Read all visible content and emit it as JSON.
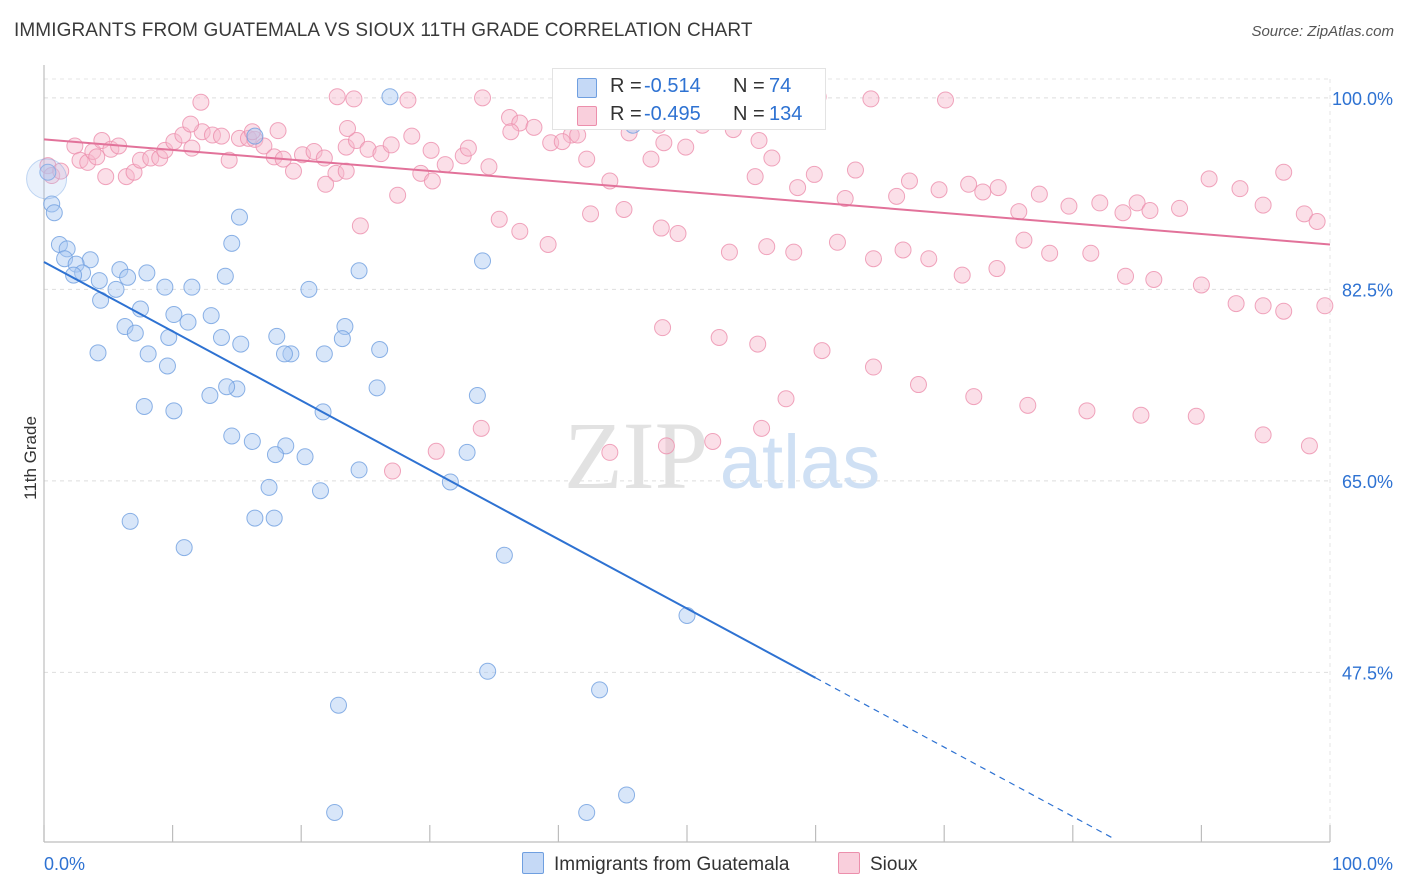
{
  "title": "IMMIGRANTS FROM GUATEMALA VS SIOUX 11TH GRADE CORRELATION CHART",
  "source": "Source: ZipAtlas.com",
  "watermark": {
    "zip": "ZIP",
    "atlas": "atlas"
  },
  "colors": {
    "blue_fill": "#a9c8f2",
    "blue_stroke": "#6f9fe0",
    "blue_line": "#2e72d2",
    "pink_fill": "#f6b8cb",
    "pink_stroke": "#ec8fac",
    "pink_line": "#e2729a",
    "value_text": "#2e72d2"
  },
  "legend": {
    "rows": [
      {
        "label": "R =",
        "r": "-0.514",
        "n_label": "N =",
        "n": "74"
      },
      {
        "label": "R =",
        "r": "-0.495",
        "n_label": "N =",
        "n": "134"
      }
    ]
  },
  "chart_data": {
    "type": "scatter",
    "title": "IMMIGRANTS FROM GUATEMALA VS SIOUX 11TH GRADE CORRELATION CHART",
    "xlabel": "",
    "ylabel": "11th Grade",
    "xlim": [
      0,
      100
    ],
    "ylim": [
      32,
      103
    ],
    "x_tick_labels": [
      "0.0%",
      "100.0%"
    ],
    "y_ticks": [
      47.5,
      65.0,
      82.5,
      100.0
    ],
    "y_tick_labels": [
      "47.5%",
      "65.0%",
      "82.5%",
      "100.0%"
    ],
    "grid": true,
    "legend_position": "top-center",
    "series": [
      {
        "name": "Immigrants from Guatemala",
        "color": "#a9c8f2",
        "R": -0.514,
        "N": 74,
        "trend": {
          "x": [
            0,
            60
          ],
          "y": [
            85.0,
            47.0
          ],
          "dashed_to": [
            83.2,
            32.3
          ]
        },
        "points": [
          [
            0.3,
            93.2
          ],
          [
            0.6,
            90.3
          ],
          [
            0.8,
            89.5
          ],
          [
            1.2,
            86.6
          ],
          [
            1.8,
            86.2
          ],
          [
            1.6,
            85.3
          ],
          [
            3.6,
            85.2
          ],
          [
            2.5,
            84.8
          ],
          [
            3.0,
            84.0
          ],
          [
            2.3,
            83.8
          ],
          [
            5.9,
            84.3
          ],
          [
            4.3,
            83.3
          ],
          [
            6.5,
            83.6
          ],
          [
            8.0,
            84.0
          ],
          [
            5.6,
            82.5
          ],
          [
            9.4,
            82.7
          ],
          [
            11.5,
            82.7
          ],
          [
            4.4,
            81.5
          ],
          [
            7.5,
            80.7
          ],
          [
            10.1,
            80.2
          ],
          [
            13.0,
            80.1
          ],
          [
            11.2,
            79.5
          ],
          [
            6.3,
            79.1
          ],
          [
            7.1,
            78.5
          ],
          [
            9.7,
            78.1
          ],
          [
            13.8,
            78.1
          ],
          [
            14.1,
            83.7
          ],
          [
            8.1,
            76.6
          ],
          [
            4.2,
            76.7
          ],
          [
            9.6,
            75.5
          ],
          [
            14.6,
            86.7
          ],
          [
            15.2,
            89.1
          ],
          [
            16.4,
            96.5
          ],
          [
            15.0,
            73.4
          ],
          [
            14.2,
            73.6
          ],
          [
            12.9,
            72.8
          ],
          [
            7.8,
            71.8
          ],
          [
            10.1,
            71.4
          ],
          [
            14.6,
            69.1
          ],
          [
            16.2,
            68.6
          ],
          [
            18.1,
            78.2
          ],
          [
            15.3,
            77.5
          ],
          [
            19.2,
            76.6
          ],
          [
            20.6,
            82.5
          ],
          [
            23.4,
            79.1
          ],
          [
            24.5,
            84.2
          ],
          [
            23.2,
            78.0
          ],
          [
            26.1,
            77.0
          ],
          [
            21.8,
            76.6
          ],
          [
            18.7,
            76.6
          ],
          [
            25.9,
            73.5
          ],
          [
            33.7,
            72.8
          ],
          [
            34.1,
            85.1
          ],
          [
            21.7,
            71.3
          ],
          [
            32.9,
            67.6
          ],
          [
            18.8,
            68.2
          ],
          [
            18.0,
            67.4
          ],
          [
            20.3,
            67.2
          ],
          [
            24.5,
            66.0
          ],
          [
            31.6,
            64.9
          ],
          [
            17.5,
            64.4
          ],
          [
            21.5,
            64.1
          ],
          [
            10.9,
            58.9
          ],
          [
            6.7,
            61.3
          ],
          [
            16.4,
            61.6
          ],
          [
            17.9,
            61.6
          ],
          [
            35.8,
            58.2
          ],
          [
            50.0,
            52.7
          ],
          [
            43.2,
            45.9
          ],
          [
            22.9,
            44.5
          ],
          [
            34.5,
            47.6
          ],
          [
            22.6,
            34.7
          ],
          [
            45.3,
            36.3
          ],
          [
            42.2,
            34.7
          ],
          [
            26.9,
            100.1
          ],
          [
            45.8,
            97.5
          ]
        ]
      },
      {
        "name": "Sioux",
        "color": "#f6b8cb",
        "R": -0.495,
        "N": 134,
        "trend": {
          "x": [
            0,
            100
          ],
          "y": [
            96.2,
            86.6
          ]
        },
        "points": [
          [
            0.3,
            93.8
          ],
          [
            0.6,
            92.9
          ],
          [
            1.3,
            93.3
          ],
          [
            2.4,
            95.6
          ],
          [
            2.8,
            94.3
          ],
          [
            3.4,
            94.1
          ],
          [
            3.8,
            95.1
          ],
          [
            4.1,
            94.6
          ],
          [
            4.5,
            96.1
          ],
          [
            4.8,
            92.8
          ],
          [
            5.2,
            95.3
          ],
          [
            5.8,
            95.6
          ],
          [
            6.4,
            92.8
          ],
          [
            7.0,
            93.2
          ],
          [
            7.5,
            94.3
          ],
          [
            8.3,
            94.5
          ],
          [
            9.0,
            94.5
          ],
          [
            9.4,
            95.2
          ],
          [
            10.1,
            96.0
          ],
          [
            10.8,
            96.6
          ],
          [
            11.5,
            95.4
          ],
          [
            12.3,
            96.9
          ],
          [
            13.1,
            96.6
          ],
          [
            13.8,
            96.5
          ],
          [
            14.4,
            94.3
          ],
          [
            15.2,
            96.3
          ],
          [
            15.9,
            96.3
          ],
          [
            16.4,
            96.2
          ],
          [
            17.1,
            95.6
          ],
          [
            17.9,
            94.6
          ],
          [
            18.6,
            94.4
          ],
          [
            19.4,
            93.3
          ],
          [
            20.1,
            94.8
          ],
          [
            21.0,
            95.1
          ],
          [
            21.8,
            94.5
          ],
          [
            22.7,
            93.1
          ],
          [
            23.5,
            95.5
          ],
          [
            24.3,
            96.1
          ],
          [
            25.2,
            95.3
          ],
          [
            26.2,
            94.9
          ],
          [
            27.0,
            95.7
          ],
          [
            28.6,
            96.5
          ],
          [
            29.3,
            93.1
          ],
          [
            30.1,
            95.2
          ],
          [
            31.2,
            93.9
          ],
          [
            32.6,
            94.7
          ],
          [
            33.0,
            95.4
          ],
          [
            34.6,
            93.7
          ],
          [
            36.2,
            98.2
          ],
          [
            37.0,
            97.7
          ],
          [
            38.1,
            97.3
          ],
          [
            39.4,
            95.9
          ],
          [
            41.0,
            96.6
          ],
          [
            42.2,
            94.4
          ],
          [
            44.0,
            92.4
          ],
          [
            45.5,
            96.8
          ],
          [
            46.4,
            98.4
          ],
          [
            47.8,
            97.5
          ],
          [
            48.2,
            95.9
          ],
          [
            47.2,
            94.4
          ],
          [
            49.9,
            95.5
          ],
          [
            51.2,
            97.5
          ],
          [
            53.6,
            97.1
          ],
          [
            55.3,
            92.8
          ],
          [
            56.6,
            94.5
          ],
          [
            58.6,
            91.8
          ],
          [
            59.9,
            93.0
          ],
          [
            62.3,
            90.8
          ],
          [
            63.1,
            93.4
          ],
          [
            66.3,
            91.0
          ],
          [
            67.3,
            92.4
          ],
          [
            69.6,
            91.6
          ],
          [
            71.9,
            92.1
          ],
          [
            73.0,
            91.4
          ],
          [
            74.2,
            91.8
          ],
          [
            75.8,
            89.6
          ],
          [
            77.4,
            91.2
          ],
          [
            79.7,
            90.1
          ],
          [
            82.1,
            90.4
          ],
          [
            83.9,
            89.5
          ],
          [
            85.0,
            90.4
          ],
          [
            86.0,
            89.7
          ],
          [
            88.3,
            89.9
          ],
          [
            90.6,
            92.6
          ],
          [
            93.0,
            91.7
          ],
          [
            94.8,
            90.2
          ],
          [
            96.4,
            93.2
          ],
          [
            98.0,
            89.4
          ],
          [
            99.0,
            88.7
          ],
          [
            12.2,
            99.6
          ],
          [
            24.1,
            99.9
          ],
          [
            22.8,
            100.1
          ],
          [
            23.6,
            97.2
          ],
          [
            28.3,
            99.8
          ],
          [
            34.1,
            100.0
          ],
          [
            36.3,
            96.9
          ],
          [
            41.5,
            96.6
          ],
          [
            60.2,
            100.1
          ],
          [
            64.3,
            99.9
          ],
          [
            70.1,
            99.8
          ],
          [
            40.3,
            96.0
          ],
          [
            55.6,
            96.1
          ],
          [
            18.2,
            97.0
          ],
          [
            16.2,
            96.9
          ],
          [
            11.4,
            97.6
          ],
          [
            21.9,
            92.1
          ],
          [
            23.5,
            93.3
          ],
          [
            30.2,
            92.4
          ],
          [
            24.6,
            88.3
          ],
          [
            27.5,
            91.1
          ],
          [
            35.4,
            88.9
          ],
          [
            37.0,
            87.8
          ],
          [
            39.2,
            86.6
          ],
          [
            42.5,
            89.4
          ],
          [
            45.1,
            89.8
          ],
          [
            48.0,
            88.1
          ],
          [
            49.3,
            87.6
          ],
          [
            53.3,
            85.9
          ],
          [
            56.2,
            86.4
          ],
          [
            58.3,
            85.9
          ],
          [
            61.7,
            86.8
          ],
          [
            64.5,
            85.3
          ],
          [
            66.8,
            86.1
          ],
          [
            68.8,
            85.3
          ],
          [
            71.4,
            83.8
          ],
          [
            74.1,
            84.4
          ],
          [
            76.2,
            87.0
          ],
          [
            78.2,
            85.8
          ],
          [
            81.4,
            85.8
          ],
          [
            84.1,
            83.7
          ],
          [
            86.3,
            83.4
          ],
          [
            90.0,
            82.9
          ],
          [
            92.7,
            81.2
          ],
          [
            94.8,
            81.0
          ],
          [
            96.4,
            80.5
          ],
          [
            99.6,
            81.0
          ],
          [
            48.1,
            79.0
          ],
          [
            52.5,
            78.1
          ],
          [
            55.5,
            77.5
          ],
          [
            60.5,
            76.9
          ],
          [
            64.5,
            75.4
          ],
          [
            68.0,
            73.8
          ],
          [
            72.3,
            72.7
          ],
          [
            76.5,
            71.9
          ],
          [
            81.1,
            71.4
          ],
          [
            85.3,
            71.0
          ],
          [
            89.6,
            70.9
          ],
          [
            94.8,
            69.2
          ],
          [
            98.4,
            68.2
          ],
          [
            57.7,
            72.5
          ],
          [
            55.8,
            69.8
          ],
          [
            52.0,
            68.6
          ],
          [
            48.4,
            68.2
          ],
          [
            44.0,
            67.6
          ],
          [
            34.0,
            69.8
          ],
          [
            30.5,
            67.7
          ],
          [
            27.1,
            65.9
          ]
        ]
      }
    ]
  },
  "bottom_legend": {
    "series1": "Immigrants from Guatemala",
    "series2": "Sioux"
  }
}
